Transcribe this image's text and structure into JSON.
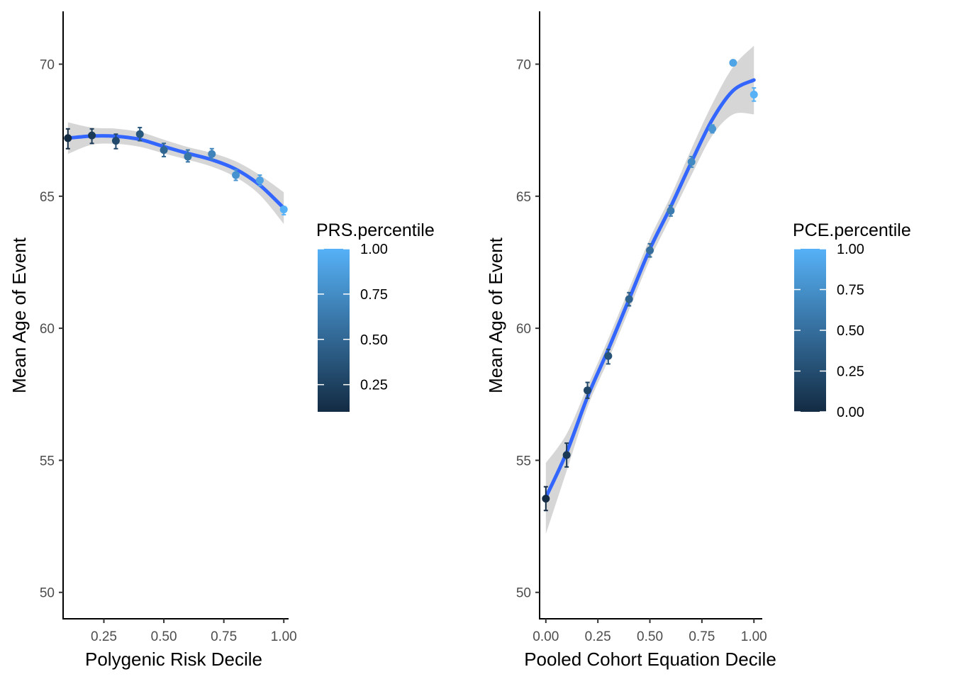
{
  "chart_data": [
    {
      "type": "scatter",
      "x": [
        0.1,
        0.2,
        0.3,
        0.4,
        0.5,
        0.6,
        0.7,
        0.8,
        0.9,
        1.0
      ],
      "series": [
        {
          "points_y": [
            67.2,
            67.3,
            67.1,
            67.35,
            66.75,
            66.5,
            66.6,
            65.8,
            65.6,
            64.5
          ],
          "err_low": [
            66.8,
            67.0,
            66.8,
            67.1,
            66.5,
            66.3,
            66.4,
            65.6,
            65.4,
            64.3
          ],
          "err_high": [
            67.55,
            67.55,
            67.35,
            67.6,
            67.0,
            66.75,
            66.8,
            66.0,
            65.8,
            64.6
          ]
        }
      ],
      "smooth": {
        "x": [
          0.1,
          0.2,
          0.3,
          0.4,
          0.5,
          0.6,
          0.7,
          0.8,
          0.9,
          1.0
        ],
        "y": [
          67.2,
          67.28,
          67.27,
          67.15,
          66.88,
          66.62,
          66.38,
          66.02,
          65.42,
          64.55
        ],
        "ci_low": [
          66.6,
          66.95,
          66.98,
          66.87,
          66.62,
          66.38,
          66.12,
          65.72,
          65.05,
          63.95
        ],
        "ci_high": [
          67.8,
          67.6,
          67.56,
          67.43,
          67.14,
          66.86,
          66.64,
          66.32,
          65.8,
          65.15
        ]
      },
      "xlabel": "Polygenic Risk Decile",
      "ylabel": "Mean Age of Event",
      "xlim": [
        0.08,
        1.02
      ],
      "ylim": [
        49.0,
        72.0
      ],
      "xticks": [
        0.25,
        0.5,
        0.75,
        1.0
      ],
      "xtick_labels": [
        "0.25",
        "0.50",
        "0.75",
        "1.00"
      ],
      "yticks": [
        50,
        55,
        60,
        65,
        70
      ],
      "ytick_labels": [
        "50",
        "55",
        "60",
        "65",
        "70"
      ],
      "legend": {
        "title": "PRS.percentile",
        "placement": "right",
        "range": [
          0.1,
          1.0
        ],
        "breaks": [
          0.25,
          0.5,
          0.75,
          1.0
        ],
        "labels": [
          "0.25",
          "0.50",
          "0.75",
          "1.00"
        ]
      },
      "grid": false
    },
    {
      "type": "scatter",
      "x": [
        0.0,
        0.1,
        0.2,
        0.3,
        0.4,
        0.5,
        0.6,
        0.7,
        0.8,
        0.9,
        1.0
      ],
      "series": [
        {
          "points_y": [
            53.55,
            55.2,
            57.65,
            58.95,
            61.1,
            62.95,
            64.45,
            66.3,
            67.55,
            70.05,
            68.85
          ],
          "err_low": [
            53.1,
            54.75,
            57.35,
            58.65,
            60.85,
            62.7,
            64.25,
            66.1,
            67.4,
            69.95,
            68.6
          ],
          "err_high": [
            54.0,
            55.65,
            57.95,
            59.2,
            61.35,
            63.2,
            64.65,
            66.5,
            67.7,
            70.15,
            69.1
          ]
        }
      ],
      "smooth": {
        "x": [
          0.0,
          0.1,
          0.2,
          0.3,
          0.4,
          0.5,
          0.6,
          0.7,
          0.8,
          0.9,
          1.0
        ],
        "y": [
          53.6,
          55.3,
          57.4,
          59.2,
          61.1,
          63.0,
          64.6,
          66.3,
          67.9,
          69.0,
          69.4
        ],
        "ci_low": [
          52.2,
          54.6,
          57.0,
          58.8,
          60.7,
          62.6,
          64.2,
          65.8,
          67.3,
          68.1,
          68.1
        ],
        "ci_high": [
          54.9,
          56.0,
          57.8,
          59.6,
          61.5,
          63.4,
          65.0,
          66.8,
          68.5,
          69.9,
          70.7
        ]
      },
      "xlabel": "Pooled Cohort Equation Decile",
      "ylabel": "Mean Age of Event",
      "xlim": [
        -0.03,
        1.04
      ],
      "ylim": [
        49.0,
        72.0
      ],
      "xticks": [
        0.0,
        0.25,
        0.5,
        0.75,
        1.0
      ],
      "xtick_labels": [
        "0.00",
        "0.25",
        "0.50",
        "0.75",
        "1.00"
      ],
      "yticks": [
        50,
        55,
        60,
        65,
        70
      ],
      "ytick_labels": [
        "50",
        "55",
        "60",
        "65",
        "70"
      ],
      "legend": {
        "title": "PCE.percentile",
        "placement": "right",
        "range": [
          0.0,
          1.0
        ],
        "breaks": [
          0.0,
          0.25,
          0.5,
          0.75,
          1.0
        ],
        "labels": [
          "0.00",
          "0.25",
          "0.50",
          "0.75",
          "1.00"
        ]
      },
      "grid": false
    }
  ],
  "colors": {
    "gradient_low": "#132B43",
    "gradient_high": "#56B1F7",
    "smooth_line": "#3366FF",
    "ribbon": "#999999",
    "axis": "#000000"
  }
}
